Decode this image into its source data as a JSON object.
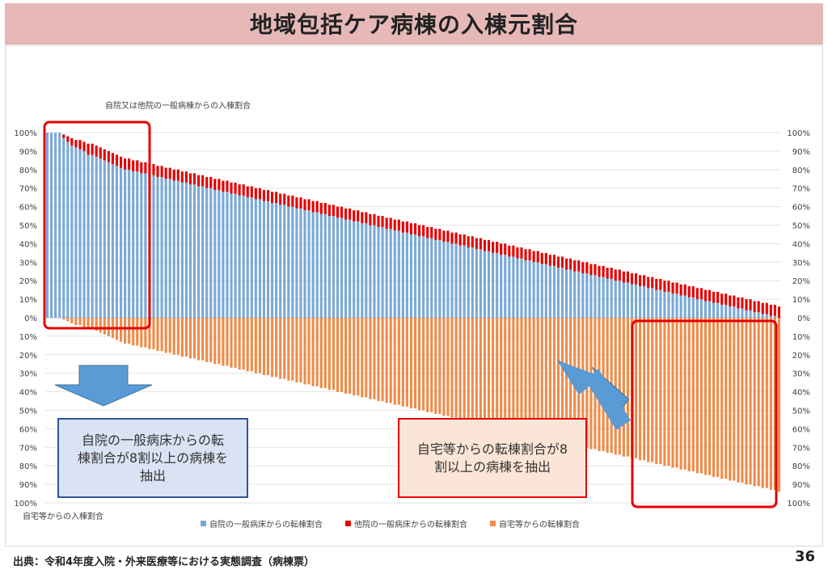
{
  "header": {
    "title": "地域包括ケア病棟の入棟元割合"
  },
  "annotations": {
    "left_box": "自院の一般病床からの転\n棟割合が8割以上の病棟を\n抽出",
    "right_box": "自宅等からの転棟割合が8\n割以上の病棟を抽出"
  },
  "footer": {
    "source": "出典：令和4年度入院・外来医療等における実態調査（病棟票）",
    "page_number": "36"
  },
  "colors": {
    "own_general": "#7aa9d6",
    "other_general": "#e60000",
    "home": "#ee8c4a",
    "highlight": "#e60000",
    "arrow": "#5b9bd5",
    "title_bg": "#e6b9b8"
  },
  "chart_data": {
    "type": "bar",
    "top_axis_title": "自院又は他院の一般病棟からの入棟割合",
    "bottom_axis_title": "自宅等からの入棟割合",
    "y_tick_labels": [
      "100%",
      "90%",
      "80%",
      "70%",
      "60%",
      "50%",
      "40%",
      "30%",
      "20%",
      "10%",
      "0%",
      "10%",
      "20%",
      "30%",
      "40%",
      "50%",
      "60%",
      "70%",
      "80%",
      "90%",
      "100%"
    ],
    "ylim": [
      -100,
      100
    ],
    "grid": true,
    "legend_position": "bottom",
    "sort": "descending by own + other general ward share",
    "series": [
      {
        "name": "自院の一般病床からの転棟割合",
        "values": [
          100,
          100,
          100,
          100,
          97,
          95,
          93,
          92,
          91,
          90,
          88,
          88,
          87,
          86,
          85,
          84,
          83,
          82,
          81,
          80,
          80,
          79,
          79,
          78,
          78,
          77,
          77,
          76,
          76,
          75,
          75,
          74,
          74,
          73,
          73,
          72,
          72,
          71,
          71,
          70,
          70,
          69,
          69,
          68,
          68,
          67,
          67,
          66,
          66,
          65,
          65,
          64,
          64,
          63,
          63,
          62,
          62,
          61,
          61,
          60,
          60,
          59,
          59,
          58,
          58,
          57,
          57,
          56,
          56,
          55,
          55,
          54,
          54,
          53,
          53,
          52,
          52,
          51,
          51,
          50,
          50,
          49,
          49,
          48,
          48,
          47,
          47,
          46,
          46,
          45,
          45,
          44,
          44,
          43,
          43,
          42,
          42,
          41,
          41,
          40,
          40,
          39,
          39,
          38,
          38,
          37,
          37,
          36,
          36,
          35,
          35,
          34,
          34,
          33,
          33,
          32,
          32,
          31,
          31,
          30,
          30,
          29,
          29,
          28,
          28,
          27,
          27,
          26,
          26,
          25,
          25,
          24,
          24,
          23,
          23,
          22,
          22,
          21,
          21,
          20,
          20,
          19,
          19,
          18,
          18,
          17,
          17,
          16,
          16,
          15,
          15,
          14,
          14,
          13,
          13,
          12,
          12,
          11,
          11,
          10,
          10,
          9,
          9,
          8,
          8,
          7,
          7,
          6,
          6,
          5,
          5,
          4,
          4,
          3,
          3,
          2,
          2,
          1,
          1,
          0
        ]
      },
      {
        "name": "他院の一般病床からの転棟割合",
        "values": [
          0,
          0,
          0,
          0,
          2,
          3,
          4,
          4,
          5,
          5,
          6,
          6,
          6,
          6,
          6,
          6,
          6,
          6,
          6,
          6,
          6,
          6,
          6,
          6,
          6,
          6,
          6,
          6,
          6,
          6,
          6,
          6,
          6,
          6,
          6,
          6,
          6,
          6,
          6,
          6,
          6,
          6,
          6,
          6,
          6,
          6,
          6,
          6,
          6,
          6,
          6,
          6,
          6,
          6,
          6,
          6,
          6,
          6,
          6,
          6,
          6,
          6,
          6,
          6,
          6,
          6,
          6,
          6,
          6,
          6,
          6,
          6,
          6,
          6,
          6,
          6,
          6,
          6,
          6,
          6,
          6,
          6,
          6,
          6,
          6,
          6,
          6,
          6,
          6,
          6,
          6,
          6,
          6,
          6,
          6,
          6,
          6,
          6,
          6,
          6,
          6,
          6,
          6,
          6,
          6,
          6,
          6,
          6,
          6,
          6,
          6,
          6,
          6,
          6,
          6,
          6,
          6,
          6,
          6,
          6,
          6,
          6,
          6,
          6,
          6,
          6,
          6,
          6,
          6,
          6,
          6,
          6,
          6,
          6,
          6,
          6,
          6,
          6,
          6,
          6,
          6,
          6,
          6,
          6,
          6,
          6,
          6,
          6,
          6,
          6,
          6,
          6,
          6,
          6,
          6,
          6,
          6,
          6,
          6,
          6,
          6,
          6,
          6,
          6,
          6,
          6,
          6,
          6,
          6,
          6,
          6,
          6,
          6,
          6,
          6,
          6,
          6,
          6,
          6,
          6,
          6,
          6,
          4,
          2,
          1
        ]
      },
      {
        "name": "自宅等からの転棟割合",
        "values": [
          0,
          0,
          0,
          0,
          1,
          2,
          3,
          4,
          4,
          5,
          6,
          6,
          7,
          8,
          9,
          10,
          11,
          12,
          13,
          14,
          14,
          15,
          15,
          16,
          16,
          17,
          17,
          18,
          18,
          19,
          19,
          20,
          20,
          21,
          21,
          22,
          22,
          23,
          23,
          24,
          24,
          25,
          25,
          26,
          26,
          27,
          27,
          28,
          28,
          29,
          29,
          30,
          30,
          31,
          31,
          32,
          32,
          33,
          33,
          34,
          34,
          35,
          35,
          36,
          36,
          37,
          37,
          38,
          38,
          39,
          39,
          40,
          40,
          41,
          41,
          42,
          42,
          43,
          43,
          44,
          44,
          45,
          45,
          46,
          46,
          47,
          47,
          48,
          48,
          49,
          49,
          50,
          50,
          51,
          51,
          52,
          52,
          53,
          53,
          54,
          54,
          55,
          55,
          56,
          56,
          57,
          57,
          58,
          58,
          59,
          59,
          60,
          60,
          61,
          61,
          62,
          62,
          63,
          63,
          64,
          64,
          65,
          65,
          66,
          66,
          67,
          67,
          68,
          68,
          69,
          69,
          70,
          70,
          71,
          71,
          72,
          72,
          73,
          73,
          74,
          74,
          75,
          75,
          76,
          76,
          77,
          77,
          78,
          78,
          79,
          79,
          80,
          80,
          81,
          81,
          82,
          82,
          83,
          83,
          84,
          84,
          85,
          85,
          86,
          86,
          87,
          87,
          88,
          88,
          89,
          89,
          90,
          90,
          91,
          91,
          92,
          92,
          93,
          93,
          94,
          95,
          96,
          97,
          98,
          99
        ]
      }
    ]
  }
}
